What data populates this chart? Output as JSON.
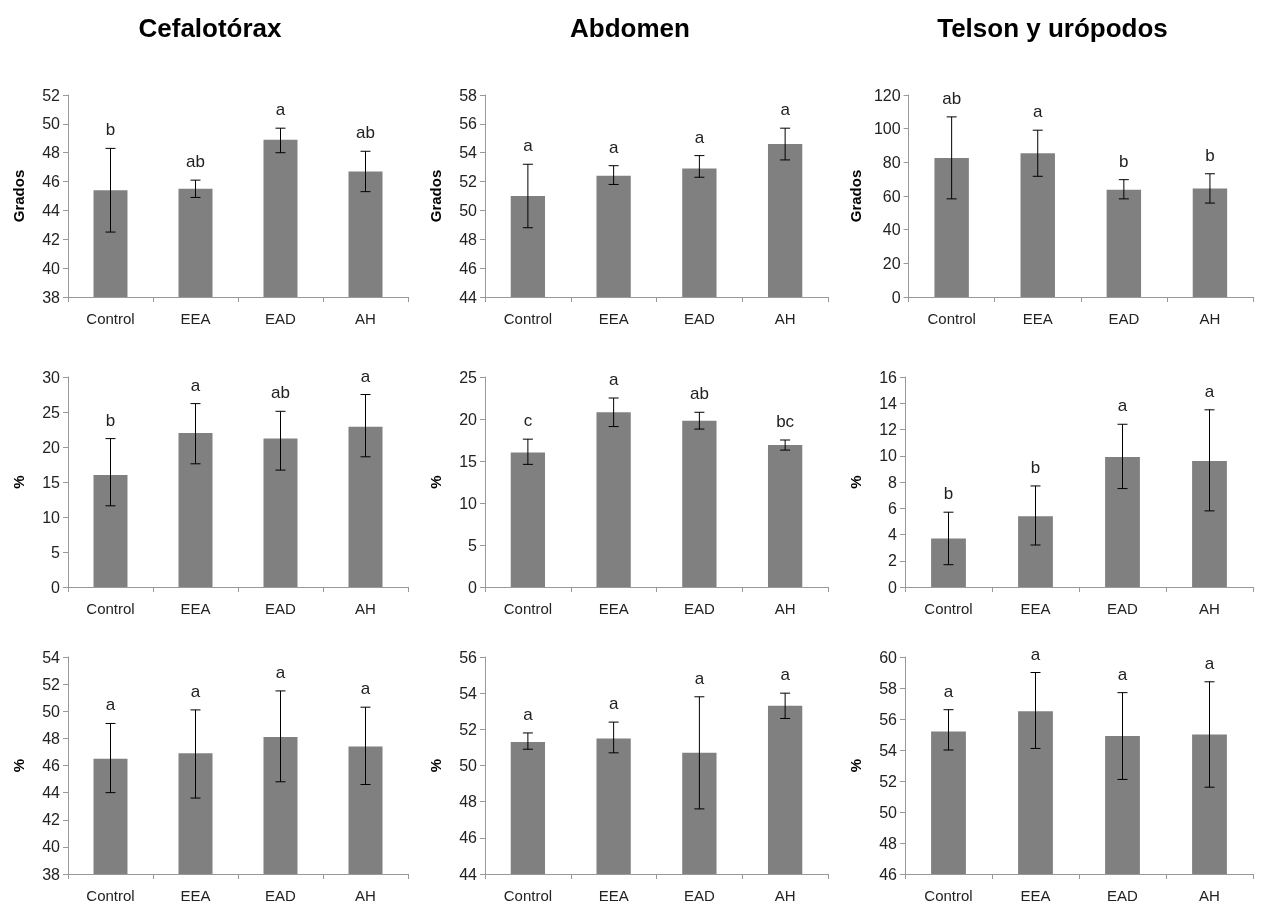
{
  "chart_data": [
    {
      "type": "bar",
      "title": "Cefalotórax",
      "ylabel": "Grados",
      "categories": [
        "Control",
        "EEA",
        "EAD",
        "AH"
      ],
      "values": [
        45.4,
        45.5,
        48.9,
        46.7
      ],
      "color": "#808080",
      "errors": [
        [
          42.5,
          48.3
        ],
        [
          44.9,
          46.1
        ],
        [
          48.0,
          49.7
        ],
        [
          45.3,
          48.1
        ]
      ],
      "ylim": [
        38,
        52
      ],
      "yticks": [
        38,
        40,
        42,
        44,
        46,
        48,
        50,
        52
      ],
      "annotations": [
        {
          "text": "b",
          "x": "Control",
          "y": 48.3
        },
        {
          "text": "ab",
          "x": "EEA",
          "y": 46.1
        },
        {
          "text": "a",
          "x": "EAD",
          "y": 49.7
        },
        {
          "text": "ab",
          "x": "AH",
          "y": 48.1
        }
      ]
    },
    {
      "type": "bar",
      "title": "Abdomen",
      "ylabel": "Grados",
      "categories": [
        "Control",
        "EEA",
        "EAD",
        "AH"
      ],
      "values": [
        51.0,
        52.4,
        52.9,
        54.6
      ],
      "color": "#808080",
      "errors": [
        [
          48.8,
          53.2
        ],
        [
          51.8,
          53.1
        ],
        [
          52.3,
          53.8
        ],
        [
          53.5,
          55.7
        ]
      ],
      "ylim": [
        44,
        58
      ],
      "yticks": [
        44,
        46,
        48,
        50,
        52,
        54,
        56,
        58
      ],
      "annotations": [
        {
          "text": "a",
          "x": "Control",
          "y": 53.2
        },
        {
          "text": "a",
          "x": "EEA",
          "y": 53.1
        },
        {
          "text": "a",
          "x": "EAD",
          "y": 53.8
        },
        {
          "text": "a",
          "x": "AH",
          "y": 55.7
        }
      ]
    },
    {
      "type": "bar",
      "title": "Telson y urópodos",
      "ylabel": "Grados",
      "categories": [
        "Control",
        "EEA",
        "EAD",
        "AH"
      ],
      "values": [
        82.6,
        85.4,
        63.7,
        64.5
      ],
      "color": "#808080",
      "errors": [
        [
          58.3,
          107
        ],
        [
          71.7,
          99.1
        ],
        [
          58.3,
          69.7
        ],
        [
          55.8,
          73.2
        ]
      ],
      "ylim": [
        0,
        120
      ],
      "yticks": [
        0,
        20,
        40,
        60,
        80,
        100,
        120
      ],
      "annotations": [
        {
          "text": "ab",
          "x": "Control",
          "y": 107
        },
        {
          "text": "a",
          "x": "EEA",
          "y": 99.1
        },
        {
          "text": "b",
          "x": "EAD",
          "y": 69.7
        },
        {
          "text": "b",
          "x": "AH",
          "y": 73.2
        }
      ]
    },
    {
      "type": "bar",
      "ylabel": "%",
      "categories": [
        "Control",
        "EEA",
        "EAD",
        "AH"
      ],
      "values": [
        16.0,
        22.0,
        21.2,
        22.9
      ],
      "color": "#808080",
      "errors": [
        [
          11.6,
          21.2
        ],
        [
          17.6,
          26.2
        ],
        [
          16.7,
          25.1
        ],
        [
          18.6,
          27.5
        ]
      ],
      "ylim": [
        0,
        30
      ],
      "yticks": [
        0,
        5,
        10,
        15,
        20,
        25,
        30
      ],
      "annotations": [
        {
          "text": "b",
          "x": "Control",
          "y": 21.2
        },
        {
          "text": "a",
          "x": "EEA",
          "y": 26.2
        },
        {
          "text": "ab",
          "x": "EAD",
          "y": 25.1
        },
        {
          "text": "a",
          "x": "AH",
          "y": 27.5
        }
      ]
    },
    {
      "type": "bar",
      "ylabel": "%",
      "categories": [
        "Control",
        "EEA",
        "EAD",
        "AH"
      ],
      "values": [
        16.0,
        20.8,
        19.8,
        16.9
      ],
      "color": "#808080",
      "errors": [
        [
          14.6,
          17.6
        ],
        [
          19.1,
          22.5
        ],
        [
          18.8,
          20.8
        ],
        [
          16.3,
          17.5
        ]
      ],
      "ylim": [
        0,
        25
      ],
      "yticks": [
        0,
        5,
        10,
        15,
        20,
        25
      ],
      "annotations": [
        {
          "text": "c",
          "x": "Control",
          "y": 17.6
        },
        {
          "text": "a",
          "x": "EEA",
          "y": 22.5
        },
        {
          "text": "ab",
          "x": "EAD",
          "y": 20.8
        },
        {
          "text": "bc",
          "x": "AH",
          "y": 17.5
        }
      ]
    },
    {
      "type": "bar",
      "ylabel": "%",
      "categories": [
        "Control",
        "EEA",
        "EAD",
        "AH"
      ],
      "values": [
        3.7,
        5.4,
        9.9,
        9.6
      ],
      "color": "#808080",
      "errors": [
        [
          1.7,
          5.7
        ],
        [
          3.2,
          7.7
        ],
        [
          7.5,
          12.4
        ],
        [
          5.8,
          13.5
        ]
      ],
      "ylim": [
        0,
        16
      ],
      "yticks": [
        0,
        2,
        4,
        6,
        8,
        10,
        12,
        14,
        16
      ],
      "annotations": [
        {
          "text": "b",
          "x": "Control",
          "y": 5.7
        },
        {
          "text": "b",
          "x": "EEA",
          "y": 7.7
        },
        {
          "text": "a",
          "x": "EAD",
          "y": 12.4
        },
        {
          "text": "a",
          "x": "AH",
          "y": 13.5
        }
      ]
    },
    {
      "type": "bar",
      "ylabel": "%",
      "categories": [
        "Control",
        "EEA",
        "EAD",
        "AH"
      ],
      "values": [
        46.5,
        46.9,
        48.1,
        47.4
      ],
      "color": "#808080",
      "errors": [
        [
          44.0,
          49.1
        ],
        [
          43.6,
          50.1
        ],
        [
          44.8,
          51.5
        ],
        [
          44.6,
          50.3
        ]
      ],
      "ylim": [
        38,
        54
      ],
      "yticks": [
        38,
        40,
        42,
        44,
        46,
        48,
        50,
        52,
        54
      ],
      "annotations": [
        {
          "text": "a",
          "x": "Control",
          "y": 49.1
        },
        {
          "text": "a",
          "x": "EEA",
          "y": 50.1
        },
        {
          "text": "a",
          "x": "EAD",
          "y": 51.5
        },
        {
          "text": "a",
          "x": "AH",
          "y": 50.3
        }
      ]
    },
    {
      "type": "bar",
      "ylabel": "%",
      "categories": [
        "Control",
        "EEA",
        "EAD",
        "AH"
      ],
      "values": [
        51.3,
        51.5,
        50.7,
        53.3
      ],
      "color": "#808080",
      "errors": [
        [
          50.9,
          51.8
        ],
        [
          50.7,
          52.4
        ],
        [
          47.6,
          53.8
        ],
        [
          52.6,
          54.0
        ]
      ],
      "ylim": [
        44,
        56
      ],
      "yticks": [
        44,
        46,
        48,
        50,
        52,
        54,
        56
      ],
      "annotations": [
        {
          "text": "a",
          "x": "Control",
          "y": 51.8
        },
        {
          "text": "a",
          "x": "EEA",
          "y": 52.4
        },
        {
          "text": "a",
          "x": "EAD",
          "y": 53.8
        },
        {
          "text": "a",
          "x": "AH",
          "y": 54.0
        }
      ]
    },
    {
      "type": "bar",
      "ylabel": "%",
      "categories": [
        "Control",
        "EEA",
        "EAD",
        "AH"
      ],
      "values": [
        55.2,
        56.5,
        54.9,
        55.0
      ],
      "color": "#808080",
      "errors": [
        [
          54.0,
          56.6
        ],
        [
          54.1,
          59.0
        ],
        [
          52.1,
          57.7
        ],
        [
          51.6,
          58.4
        ]
      ],
      "ylim": [
        46,
        60
      ],
      "yticks": [
        46,
        48,
        50,
        52,
        54,
        56,
        58,
        60
      ],
      "annotations": [
        {
          "text": "a",
          "x": "Control",
          "y": 56.6
        },
        {
          "text": "a",
          "x": "EEA",
          "y": 59.0
        },
        {
          "text": "a",
          "x": "EAD",
          "y": 57.7
        },
        {
          "text": "a",
          "x": "AH",
          "y": 58.4
        }
      ]
    }
  ]
}
